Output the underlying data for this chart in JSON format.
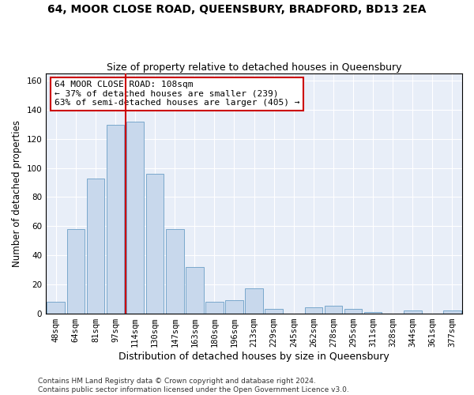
{
  "title": "64, MOOR CLOSE ROAD, QUEENSBURY, BRADFORD, BD13 2EA",
  "subtitle": "Size of property relative to detached houses in Queensbury",
  "xlabel": "Distribution of detached houses by size in Queensbury",
  "ylabel": "Number of detached properties",
  "bar_labels": [
    "48sqm",
    "64sqm",
    "81sqm",
    "97sqm",
    "114sqm",
    "130sqm",
    "147sqm",
    "163sqm",
    "180sqm",
    "196sqm",
    "213sqm",
    "229sqm",
    "245sqm",
    "262sqm",
    "278sqm",
    "295sqm",
    "311sqm",
    "328sqm",
    "344sqm",
    "361sqm",
    "377sqm"
  ],
  "bar_values": [
    8,
    58,
    93,
    130,
    132,
    96,
    58,
    32,
    8,
    9,
    17,
    3,
    0,
    4,
    5,
    3,
    1,
    0,
    2,
    0,
    2
  ],
  "bar_color": "#c8d8ec",
  "bar_edge_color": "#7aa8cc",
  "vline_index": 4,
  "vline_color": "#cc0000",
  "annotation_text": "64 MOOR CLOSE ROAD: 108sqm\n← 37% of detached houses are smaller (239)\n63% of semi-detached houses are larger (405) →",
  "annotation_box_color": "#ffffff",
  "annotation_box_edge": "#cc0000",
  "ylim": [
    0,
    165
  ],
  "yticks": [
    0,
    20,
    40,
    60,
    80,
    100,
    120,
    140,
    160
  ],
  "background_color": "#e8eef8",
  "footer": "Contains HM Land Registry data © Crown copyright and database right 2024.\nContains public sector information licensed under the Open Government Licence v3.0.",
  "title_fontsize": 10,
  "subtitle_fontsize": 9,
  "xlabel_fontsize": 9,
  "ylabel_fontsize": 8.5,
  "tick_fontsize": 7.5,
  "footer_fontsize": 6.5,
  "annot_fontsize": 8
}
